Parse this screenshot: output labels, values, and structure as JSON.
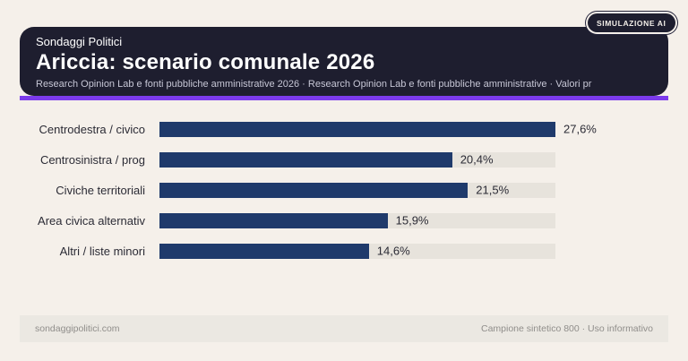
{
  "badge": {
    "label": "SIMULAZIONE AI"
  },
  "header": {
    "eyebrow": "Sondaggi Politici",
    "title": "Ariccia: scenario comunale 2026",
    "subtitle": "Research Opinion Lab e fonti pubbliche amministrative 2026 · Research Opinion Lab e fonti pubbliche amministrative · Valori pr"
  },
  "chart_data": {
    "type": "bar",
    "orientation": "horizontal",
    "title": "Ariccia: scenario comunale 2026",
    "categories": [
      "Centrodestra / civico",
      "Centrosinistra / prog",
      "Civiche territoriali",
      "Area civica alternativ",
      "Altri / liste minori"
    ],
    "values": [
      27.6,
      20.4,
      21.5,
      15.9,
      14.6
    ],
    "value_labels": [
      "27,6%",
      "20,4%",
      "21,5%",
      "15,9%",
      "14,6%"
    ],
    "xlabel": "",
    "ylabel": "",
    "xlim": [
      0,
      27.6
    ],
    "grid": false,
    "legend": false,
    "bar_color": "#1f3a6b",
    "track_color": "#e7e3dc"
  },
  "footer": {
    "left": "sondaggipolitici.com",
    "right": "Campione sintetico 800 · Uso informativo"
  },
  "colors": {
    "page_background": "#f5f0ea",
    "header_background": "#1e1e2f",
    "accent_purple": "#7c3bec",
    "bar_navy": "#1f3a6b",
    "bar_track": "#e7e3dc",
    "text_dark": "#2b2b35",
    "subtitle_text": "#c7c7d6",
    "footer_background": "#ebe8e2",
    "footer_text": "#908e8b"
  }
}
